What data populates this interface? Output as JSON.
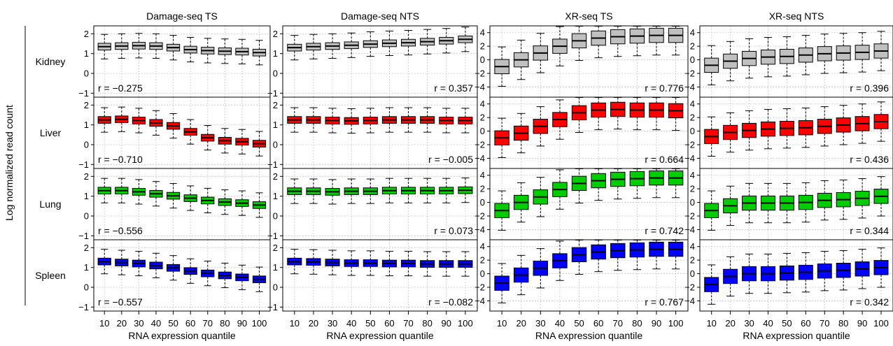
{
  "figure": {
    "ylabel": "Log normalized read count",
    "xlabel": "RNA expression quantile",
    "columns": [
      "Damage-seq TS",
      "Damage-seq NTS",
      "XR-seq TS",
      "XR-seq NTS"
    ],
    "rows": [
      "Kidney",
      "Liver",
      "Lung",
      "Spleen"
    ],
    "row_colors": {
      "Kidney": "#c0c0c0",
      "Liver": "#ff0000",
      "Lung": "#00cc00",
      "Spleen": "#0000ff"
    }
  },
  "chart_data": {
    "type": "box",
    "categories": [
      "10",
      "20",
      "30",
      "40",
      "50",
      "60",
      "70",
      "80",
      "90",
      "100"
    ],
    "xlabel": "RNA expression quantile",
    "ylabel": "Log normalized read count",
    "grid": true,
    "panels": [
      {
        "column": "Damage-seq TS",
        "row": "Kidney",
        "ylim": [
          -1.2,
          2.4
        ],
        "yticks": [
          -1,
          0,
          1,
          2
        ],
        "r_label": "r = −0.275",
        "r_pos": "bottom-left",
        "medians": [
          1.35,
          1.38,
          1.4,
          1.38,
          1.3,
          1.2,
          1.15,
          1.12,
          1.1,
          1.05
        ]
      },
      {
        "column": "Damage-seq NTS",
        "row": "Kidney",
        "ylim": [
          -1.2,
          2.4
        ],
        "yticks": [
          -1,
          0,
          1,
          2
        ],
        "r_label": "r = 0.357",
        "r_pos": "bottom-right",
        "medians": [
          1.3,
          1.35,
          1.38,
          1.42,
          1.48,
          1.52,
          1.55,
          1.6,
          1.65,
          1.72
        ]
      },
      {
        "column": "XR-seq TS",
        "row": "Kidney",
        "ylim": [
          -5.5,
          5
        ],
        "yticks": [
          -4,
          -2,
          0,
          2,
          4
        ],
        "r_label": "r = 0.776",
        "r_pos": "bottom-right",
        "medians": [
          -1,
          0,
          1,
          2,
          2.8,
          3.2,
          3.4,
          3.5,
          3.6,
          3.6
        ]
      },
      {
        "column": "XR-seq NTS",
        "row": "Kidney",
        "ylim": [
          -5.5,
          5
        ],
        "yticks": [
          -4,
          -2,
          0,
          2,
          4
        ],
        "r_label": "r = 0.396",
        "r_pos": "bottom-right",
        "medians": [
          -0.8,
          -0.2,
          0.2,
          0.4,
          0.5,
          0.7,
          0.9,
          1.0,
          1.1,
          1.3
        ]
      },
      {
        "column": "Damage-seq TS",
        "row": "Liver",
        "ylim": [
          -1.2,
          2.4
        ],
        "yticks": [
          -1,
          0,
          1,
          2
        ],
        "r_label": "r = −0.710",
        "r_pos": "bottom-left",
        "medians": [
          1.25,
          1.28,
          1.22,
          1.1,
          0.95,
          0.65,
          0.35,
          0.2,
          0.15,
          0.05
        ]
      },
      {
        "column": "Damage-seq NTS",
        "row": "Liver",
        "ylim": [
          -1.2,
          2.4
        ],
        "yticks": [
          -1,
          0,
          1,
          2
        ],
        "r_label": "r = −0.005",
        "r_pos": "bottom-right",
        "medians": [
          1.25,
          1.25,
          1.22,
          1.2,
          1.22,
          1.25,
          1.25,
          1.25,
          1.22,
          1.22
        ]
      },
      {
        "column": "XR-seq TS",
        "row": "Liver",
        "ylim": [
          -5.5,
          5
        ],
        "yticks": [
          -4,
          -2,
          0,
          2,
          4
        ],
        "r_label": "r = 0.664",
        "r_pos": "bottom-right",
        "medians": [
          -1,
          -0.3,
          0.7,
          1.7,
          2.7,
          3.1,
          3.2,
          3.1,
          3.1,
          3.0
        ]
      },
      {
        "column": "XR-seq NTS",
        "row": "Liver",
        "ylim": [
          -5.5,
          5
        ],
        "yticks": [
          -4,
          -2,
          0,
          2,
          4
        ],
        "r_label": "r = 0.436",
        "r_pos": "bottom-right",
        "medians": [
          -0.8,
          -0.2,
          0.1,
          0.3,
          0.4,
          0.5,
          0.7,
          0.9,
          1.1,
          1.4
        ]
      },
      {
        "column": "Damage-seq TS",
        "row": "Lung",
        "ylim": [
          -1.2,
          2.4
        ],
        "yticks": [
          -1,
          0,
          1,
          2
        ],
        "r_label": "r = −0.556",
        "r_pos": "bottom-left",
        "medians": [
          1.28,
          1.28,
          1.22,
          1.12,
          1.02,
          0.9,
          0.78,
          0.7,
          0.65,
          0.55
        ]
      },
      {
        "column": "Damage-seq NTS",
        "row": "Lung",
        "ylim": [
          -1.2,
          2.4
        ],
        "yticks": [
          -1,
          0,
          1,
          2
        ],
        "r_label": "r = 0.073",
        "r_pos": "bottom-right",
        "medians": [
          1.25,
          1.25,
          1.22,
          1.25,
          1.25,
          1.28,
          1.28,
          1.28,
          1.28,
          1.3
        ]
      },
      {
        "column": "XR-seq TS",
        "row": "Lung",
        "ylim": [
          -5.5,
          5
        ],
        "yticks": [
          -4,
          -2,
          0,
          2,
          4
        ],
        "r_label": "r = 0.742",
        "r_pos": "bottom-right",
        "medians": [
          -1.2,
          0,
          0.8,
          1.9,
          2.8,
          3.2,
          3.4,
          3.5,
          3.6,
          3.6
        ]
      },
      {
        "column": "XR-seq NTS",
        "row": "Lung",
        "ylim": [
          -5.5,
          5
        ],
        "yticks": [
          -4,
          -2,
          0,
          2,
          4
        ],
        "r_label": "r = 0.344",
        "r_pos": "bottom-right",
        "medians": [
          -1.2,
          -0.5,
          -0.1,
          -0.1,
          -0.1,
          0,
          0.3,
          0.4,
          0.6,
          0.9
        ]
      },
      {
        "column": "Damage-seq TS",
        "row": "Spleen",
        "ylim": [
          -1.2,
          2.4
        ],
        "yticks": [
          -1,
          0,
          1,
          2
        ],
        "r_label": "r = −0.557",
        "r_pos": "bottom-left",
        "medians": [
          1.3,
          1.25,
          1.2,
          1.1,
          0.98,
          0.82,
          0.7,
          0.6,
          0.5,
          0.4
        ]
      },
      {
        "column": "Damage-seq NTS",
        "row": "Spleen",
        "ylim": [
          -1.2,
          2.4
        ],
        "yticks": [
          -1,
          0,
          1,
          2
        ],
        "r_label": "r = −0.082",
        "r_pos": "bottom-right",
        "medians": [
          1.3,
          1.28,
          1.25,
          1.22,
          1.22,
          1.2,
          1.2,
          1.18,
          1.18,
          1.18
        ]
      },
      {
        "column": "XR-seq TS",
        "row": "Spleen",
        "ylim": [
          -5.5,
          5
        ],
        "yticks": [
          -4,
          -2,
          0,
          2,
          4
        ],
        "r_label": "r = 0.767",
        "r_pos": "bottom-right",
        "medians": [
          -1.4,
          -0.2,
          0.8,
          1.9,
          2.8,
          3.2,
          3.4,
          3.5,
          3.6,
          3.6
        ]
      },
      {
        "column": "XR-seq NTS",
        "row": "Spleen",
        "ylim": [
          -5.5,
          5
        ],
        "yticks": [
          -4,
          -2,
          0,
          2,
          4
        ],
        "r_label": "r = 0.342",
        "r_pos": "bottom-right",
        "medians": [
          -1.6,
          -0.4,
          0,
          0,
          0.1,
          0.2,
          0.4,
          0.5,
          0.7,
          0.9
        ]
      }
    ]
  }
}
